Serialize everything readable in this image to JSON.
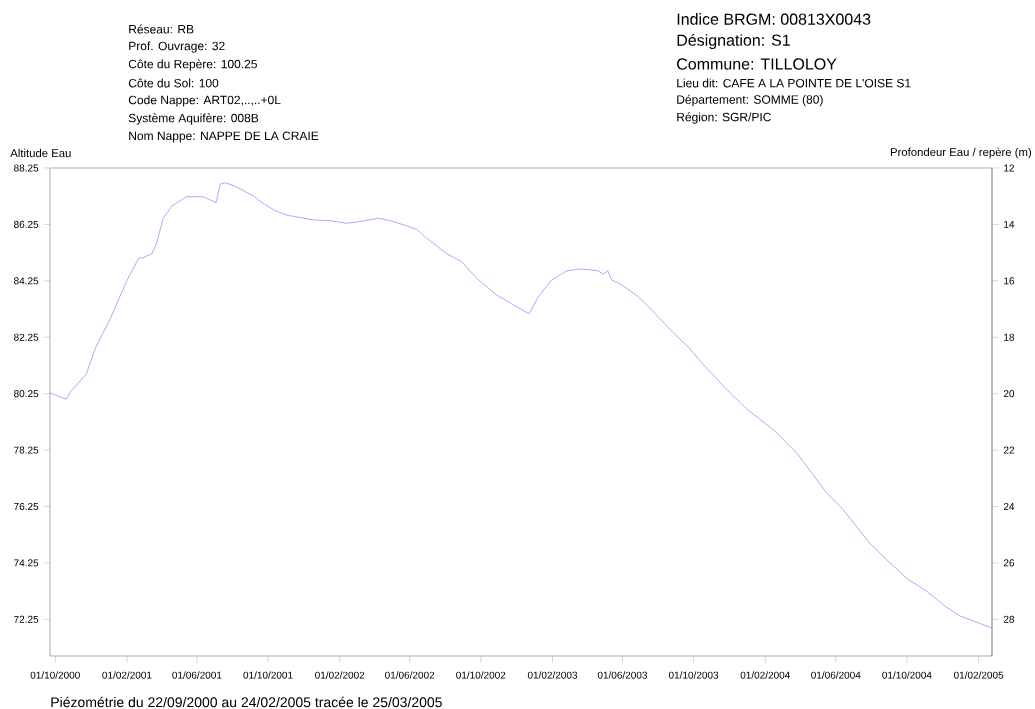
{
  "chart_data": {
    "type": "line",
    "annotations": [
      "Réseau: RB",
      "Prof. Ouvrage: 32",
      "Côte du Repère: 100.25",
      "Côte du Sol: 100",
      "Code Nappe: ART02,..,..+0L",
      "Système Aquifère: 008B",
      "Nom Nappe: NAPPE DE LA CRAIE",
      "Indice BRGM: 00813X0043",
      "Désignation: S1",
      "Commune: TILLOLOY",
      "Lieu dit: CAFE A LA POINTE DE L'OISE S1",
      "Département: SOMME (80)",
      "Région: SGR/PIC",
      "Piézométrie du 22/09/2000 au 24/02/2005 tracée le 25/03/2005"
    ],
    "ylabel": "Altitude Eau",
    "y2label": "Profondeur Eau / repère (m)",
    "xlim": [
      "2000-09-22",
      "2005-02-24"
    ],
    "xticks": [
      {
        "value": "2000-10-01",
        "label": "01/10/2000"
      },
      {
        "value": "2001-02-01",
        "label": "01/02/2001"
      },
      {
        "value": "2001-06-01",
        "label": "01/06/2001"
      },
      {
        "value": "2001-10-01",
        "label": "01/10/2001"
      },
      {
        "value": "2002-02-01",
        "label": "01/02/2002"
      },
      {
        "value": "2002-06-01",
        "label": "01/06/2002"
      },
      {
        "value": "2002-10-01",
        "label": "01/10/2002"
      },
      {
        "value": "2003-02-01",
        "label": "01/02/2003"
      },
      {
        "value": "2003-06-01",
        "label": "01/06/2003"
      },
      {
        "value": "2003-10-01",
        "label": "01/10/2003"
      },
      {
        "value": "2004-02-01",
        "label": "01/02/2004"
      },
      {
        "value": "2004-06-01",
        "label": "01/06/2004"
      },
      {
        "value": "2004-10-01",
        "label": "01/10/2004"
      },
      {
        "value": "2005-02-01",
        "label": "01/02/2005"
      }
    ],
    "ylim": [
      70.95,
      88.25
    ],
    "yticks": [
      72.25,
      74.25,
      76.25,
      78.25,
      80.25,
      82.25,
      84.25,
      86.25,
      88.25
    ],
    "y2lim": [
      29.3,
      12
    ],
    "y2ticks": [
      12,
      14,
      16,
      18,
      20,
      22,
      24,
      26,
      28
    ],
    "series": [
      {
        "color": "#8080ff",
        "x": [
          "2000-09-22",
          "2000-10-20",
          "2000-10-27",
          "2000-11-23",
          "2000-12-09",
          "2001-01-04",
          "2001-01-31",
          "2001-02-21",
          "2001-03-02",
          "2001-03-16",
          "2001-03-24",
          "2001-04-04",
          "2001-04-19",
          "2001-05-14",
          "2001-06-12",
          "2001-07-04",
          "2001-07-11",
          "2001-07-19",
          "2001-08-05",
          "2001-09-06",
          "2001-09-20",
          "2001-10-13",
          "2001-11-02",
          "2001-12-18",
          "2002-01-16",
          "2002-02-13",
          "2002-03-14",
          "2002-04-08",
          "2002-05-01",
          "2002-06-13",
          "2002-06-27",
          "2002-08-03",
          "2002-08-29",
          "2002-09-24",
          "2002-10-28",
          "2002-11-20",
          "2002-12-23",
          "2003-01-07",
          "2003-01-30",
          "2003-02-26",
          "2003-03-21",
          "2003-04-19",
          "2003-04-29",
          "2003-05-07",
          "2003-05-13",
          "2003-06-02",
          "2003-06-26",
          "2003-07-13",
          "2003-08-23",
          "2003-09-22",
          "2003-10-15",
          "2003-11-25",
          "2003-12-31",
          "2004-02-16",
          "2004-03-28",
          "2004-05-15",
          "2004-06-13",
          "2004-07-30",
          "2004-08-29",
          "2004-10-03",
          "2004-11-01",
          "2004-12-07",
          "2004-12-30",
          "2005-02-24"
        ],
        "values": [
          80.28,
          80.05,
          80.32,
          80.94,
          81.87,
          82.93,
          84.22,
          85.05,
          85.08,
          85.22,
          85.58,
          86.47,
          86.9,
          87.23,
          87.23,
          87.02,
          87.68,
          87.73,
          87.61,
          87.26,
          87.03,
          86.74,
          86.58,
          86.41,
          86.38,
          86.29,
          86.37,
          86.47,
          86.37,
          86.08,
          85.81,
          85.22,
          84.93,
          84.34,
          83.75,
          83.47,
          83.08,
          83.66,
          84.27,
          84.61,
          84.67,
          84.61,
          84.49,
          84.6,
          84.29,
          84.08,
          83.72,
          83.39,
          82.5,
          81.9,
          81.35,
          80.44,
          79.71,
          78.95,
          78.1,
          76.76,
          76.15,
          74.93,
          74.33,
          73.66,
          73.29,
          72.69,
          72.38,
          71.94
        ]
      }
    ]
  }
}
